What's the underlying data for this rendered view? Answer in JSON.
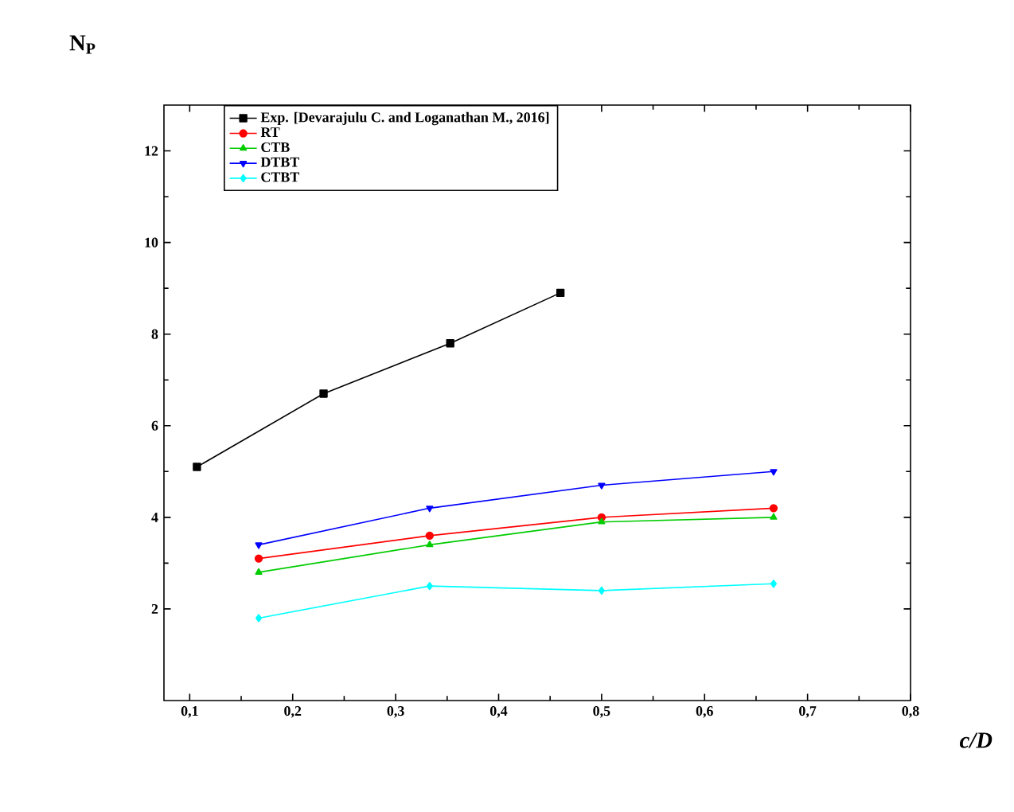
{
  "chart_data": {
    "type": "line",
    "xlabel": "c/D",
    "ylabel": "N$_{P}$",
    "xlim": [
      0.075,
      0.8
    ],
    "ylim": [
      0,
      13
    ],
    "xticks": [
      {
        "value": 0.1,
        "label": "0,1"
      },
      {
        "value": 0.2,
        "label": "0,2"
      },
      {
        "value": 0.3,
        "label": "0,3"
      },
      {
        "value": 0.4,
        "label": "0,4"
      },
      {
        "value": 0.5,
        "label": "0,5"
      },
      {
        "value": 0.6,
        "label": "0,6"
      },
      {
        "value": 0.7,
        "label": "0,7"
      },
      {
        "value": 0.8,
        "label": "0,8"
      }
    ],
    "yticks": [
      2,
      4,
      6,
      8,
      10,
      12
    ],
    "legend": "top",
    "grid": false,
    "line_style": "solid",
    "series": [
      {
        "name": "Exp. [Devarajulu C. and Loganathan M., 2016]",
        "color": "#000000",
        "marker": "square",
        "x": [
          0.107,
          0.23,
          0.353,
          0.46
        ],
        "values": [
          5.1,
          6.7,
          7.8,
          8.9
        ]
      },
      {
        "name": "RT",
        "color": "#ff0000",
        "marker": "circle",
        "x": [
          0.167,
          0.333,
          0.5,
          0.667
        ],
        "values": [
          3.1,
          3.6,
          4.0,
          4.2
        ]
      },
      {
        "name": "CTB",
        "color": "#00cc00",
        "marker": "triangle",
        "x": [
          0.167,
          0.333,
          0.5,
          0.667
        ],
        "values": [
          2.8,
          3.4,
          3.9,
          4.0
        ]
      },
      {
        "name": "DTBT",
        "color": "#0000ff",
        "marker": "triangle_down",
        "x": [
          0.167,
          0.333,
          0.5,
          0.667
        ],
        "values": [
          3.4,
          4.2,
          4.7,
          5.0
        ]
      },
      {
        "name": "CTBT",
        "color": "#00ffff",
        "marker": "diamond",
        "x": [
          0.167,
          0.333,
          0.5,
          0.667
        ],
        "values": [
          1.8,
          2.5,
          2.4,
          2.55
        ]
      }
    ]
  }
}
